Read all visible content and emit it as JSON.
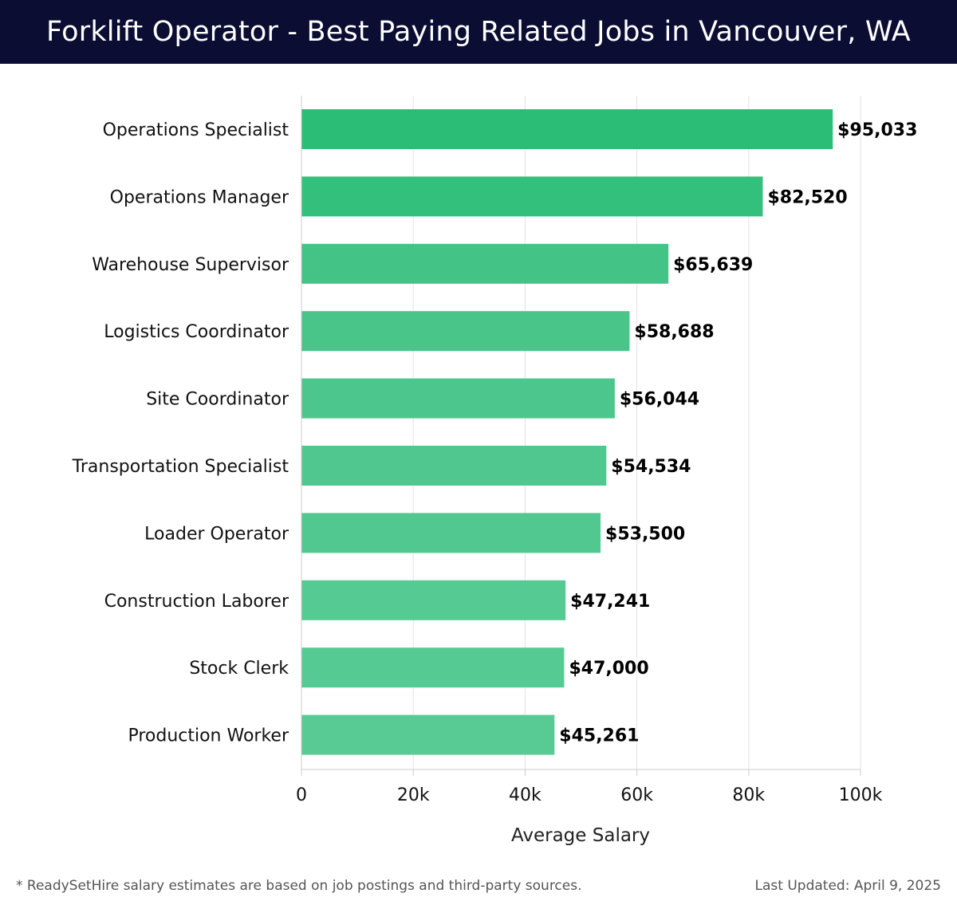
{
  "header": {
    "title": "Forklift Operator - Best Paying Related Jobs in Vancouver, WA"
  },
  "chart_data": {
    "type": "bar",
    "orientation": "horizontal",
    "title": "Forklift Operator - Best Paying Related Jobs in Vancouver, WA",
    "categories": [
      "Operations Specialist",
      "Operations Manager",
      "Warehouse Supervisor",
      "Logistics Coordinator",
      "Site Coordinator",
      "Transportation Specialist",
      "Loader Operator",
      "Construction Laborer",
      "Stock Clerk",
      "Production Worker"
    ],
    "values": [
      95033,
      82520,
      65639,
      58688,
      56044,
      54534,
      53500,
      47241,
      47000,
      45261
    ],
    "value_labels": [
      "$95,033",
      "$82,520",
      "$65,639",
      "$58,688",
      "$56,044",
      "$54,534",
      "$53,500",
      "$47,241",
      "$47,000",
      "$45,261"
    ],
    "xlabel": "Average Salary",
    "ylabel": "",
    "xlim": [
      0,
      100000
    ],
    "x_ticks": [
      0,
      20000,
      40000,
      60000,
      80000,
      100000
    ],
    "x_tick_labels": [
      "0",
      "20k",
      "40k",
      "60k",
      "80k",
      "100k"
    ],
    "grid": true,
    "bar_colors": [
      "#2bbd76",
      "#33c07c",
      "#44c387",
      "#49c58a",
      "#4cc68c",
      "#4fc78e",
      "#50c88f",
      "#55ca92",
      "#56ca93",
      "#58cb94"
    ]
  },
  "footer": {
    "note": "* ReadySetHire salary estimates are based on job postings and third-party sources.",
    "updated": "Last Updated: April 9, 2025"
  }
}
